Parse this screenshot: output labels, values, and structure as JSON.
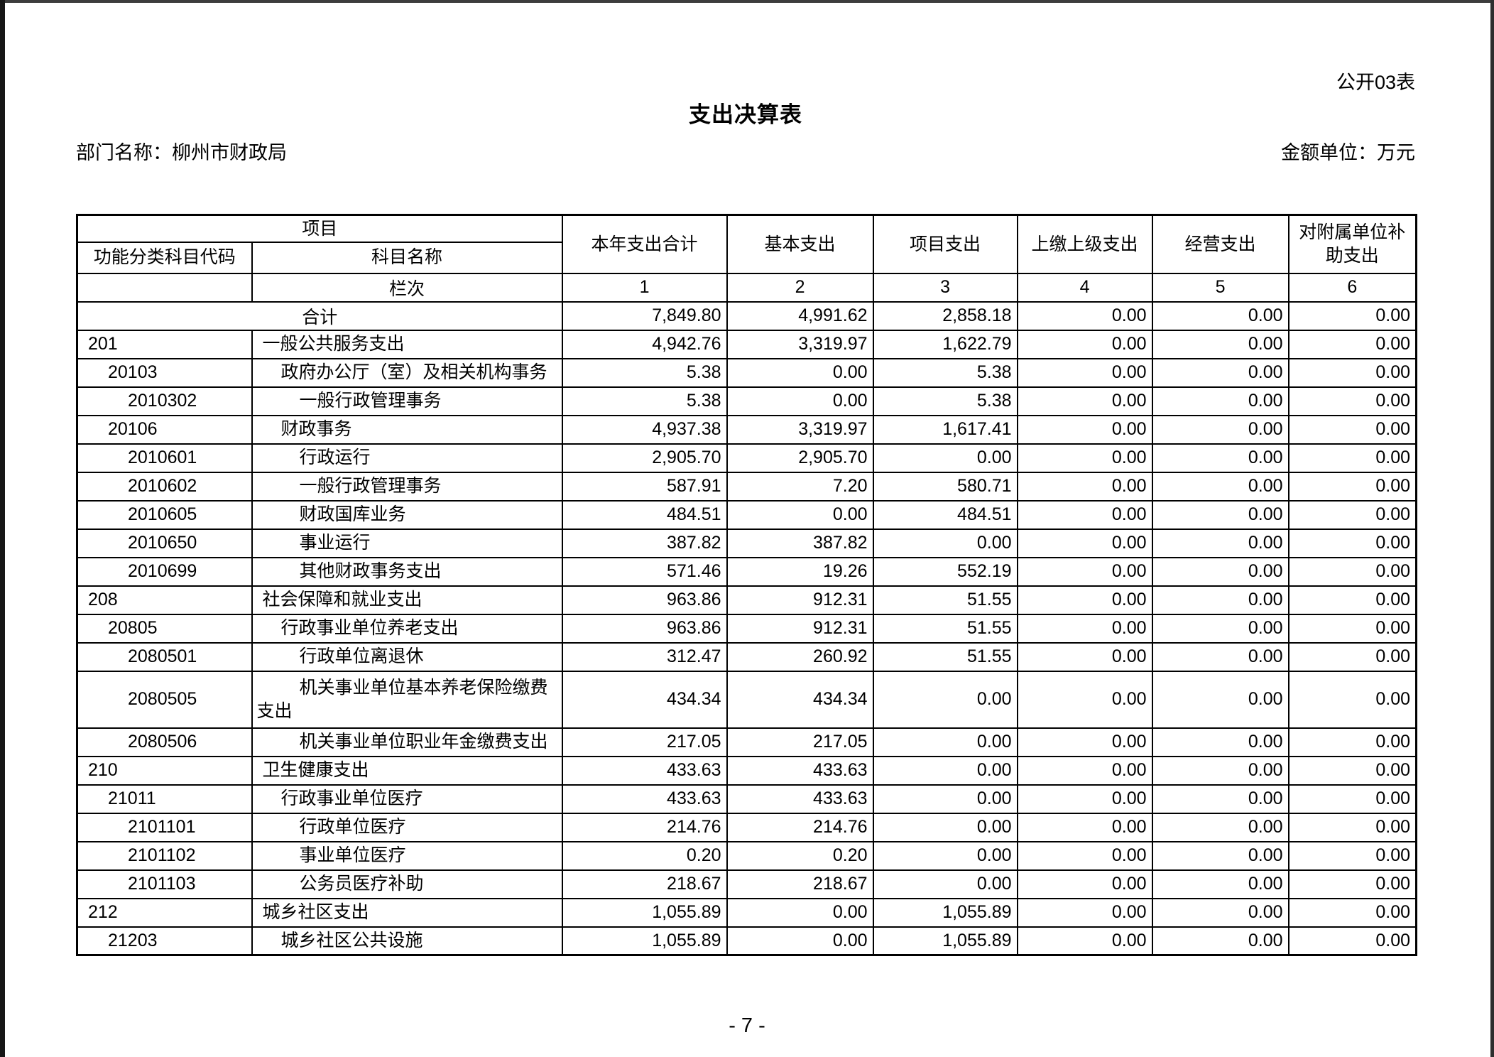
{
  "page": {
    "form_label": "公开03表",
    "title": "支出决算表",
    "department_label": "部门名称：柳州市财政局",
    "unit_label": "金额单位：万元",
    "page_number": "- 7 -"
  },
  "table": {
    "header": {
      "project": "项目",
      "code": "功能分类科目代码",
      "name": "科目名称",
      "lanci": "栏次",
      "cols": [
        "本年支出合计",
        "基本支出",
        "项目支出",
        "上缴上级支出",
        "经营支出",
        "对附属单位补助支出"
      ],
      "col_numbers": [
        "1",
        "2",
        "3",
        "4",
        "5",
        "6"
      ]
    },
    "rows": [
      {
        "merged": true,
        "code": "",
        "name": "合计",
        "level": 0,
        "values": [
          "7,849.80",
          "4,991.62",
          "2,858.18",
          "0.00",
          "0.00",
          "0.00"
        ]
      },
      {
        "code": "201",
        "name": "一般公共服务支出",
        "level": 1,
        "values": [
          "4,942.76",
          "3,319.97",
          "1,622.79",
          "0.00",
          "0.00",
          "0.00"
        ]
      },
      {
        "code": "20103",
        "name": "政府办公厅（室）及相关机构事务",
        "level": 2,
        "values": [
          "5.38",
          "0.00",
          "5.38",
          "0.00",
          "0.00",
          "0.00"
        ]
      },
      {
        "code": "2010302",
        "name": "一般行政管理事务",
        "level": 3,
        "values": [
          "5.38",
          "0.00",
          "5.38",
          "0.00",
          "0.00",
          "0.00"
        ]
      },
      {
        "code": "20106",
        "name": "财政事务",
        "level": 2,
        "values": [
          "4,937.38",
          "3,319.97",
          "1,617.41",
          "0.00",
          "0.00",
          "0.00"
        ]
      },
      {
        "code": "2010601",
        "name": "行政运行",
        "level": 3,
        "values": [
          "2,905.70",
          "2,905.70",
          "0.00",
          "0.00",
          "0.00",
          "0.00"
        ]
      },
      {
        "code": "2010602",
        "name": "一般行政管理事务",
        "level": 3,
        "values": [
          "587.91",
          "7.20",
          "580.71",
          "0.00",
          "0.00",
          "0.00"
        ]
      },
      {
        "code": "2010605",
        "name": "财政国库业务",
        "level": 3,
        "values": [
          "484.51",
          "0.00",
          "484.51",
          "0.00",
          "0.00",
          "0.00"
        ]
      },
      {
        "code": "2010650",
        "name": "事业运行",
        "level": 3,
        "values": [
          "387.82",
          "387.82",
          "0.00",
          "0.00",
          "0.00",
          "0.00"
        ]
      },
      {
        "code": "2010699",
        "name": "其他财政事务支出",
        "level": 3,
        "values": [
          "571.46",
          "19.26",
          "552.19",
          "0.00",
          "0.00",
          "0.00"
        ]
      },
      {
        "code": "208",
        "name": "社会保障和就业支出",
        "level": 1,
        "values": [
          "963.86",
          "912.31",
          "51.55",
          "0.00",
          "0.00",
          "0.00"
        ]
      },
      {
        "code": "20805",
        "name": "行政事业单位养老支出",
        "level": 2,
        "values": [
          "963.86",
          "912.31",
          "51.55",
          "0.00",
          "0.00",
          "0.00"
        ]
      },
      {
        "code": "2080501",
        "name": "行政单位离退休",
        "level": 3,
        "values": [
          "312.47",
          "260.92",
          "51.55",
          "0.00",
          "0.00",
          "0.00"
        ]
      },
      {
        "code": "2080505",
        "name": "机关事业单位基本养老保险缴费支出",
        "level": 3,
        "tall": true,
        "values": [
          "434.34",
          "434.34",
          "0.00",
          "0.00",
          "0.00",
          "0.00"
        ]
      },
      {
        "code": "2080506",
        "name": "机关事业单位职业年金缴费支出",
        "level": 3,
        "values": [
          "217.05",
          "217.05",
          "0.00",
          "0.00",
          "0.00",
          "0.00"
        ]
      },
      {
        "code": "210",
        "name": "卫生健康支出",
        "level": 1,
        "values": [
          "433.63",
          "433.63",
          "0.00",
          "0.00",
          "0.00",
          "0.00"
        ]
      },
      {
        "code": "21011",
        "name": "行政事业单位医疗",
        "level": 2,
        "values": [
          "433.63",
          "433.63",
          "0.00",
          "0.00",
          "0.00",
          "0.00"
        ]
      },
      {
        "code": "2101101",
        "name": "行政单位医疗",
        "level": 3,
        "values": [
          "214.76",
          "214.76",
          "0.00",
          "0.00",
          "0.00",
          "0.00"
        ]
      },
      {
        "code": "2101102",
        "name": "事业单位医疗",
        "level": 3,
        "values": [
          "0.20",
          "0.20",
          "0.00",
          "0.00",
          "0.00",
          "0.00"
        ]
      },
      {
        "code": "2101103",
        "name": "公务员医疗补助",
        "level": 3,
        "values": [
          "218.67",
          "218.67",
          "0.00",
          "0.00",
          "0.00",
          "0.00"
        ]
      },
      {
        "code": "212",
        "name": "城乡社区支出",
        "level": 1,
        "values": [
          "1,055.89",
          "0.00",
          "1,055.89",
          "0.00",
          "0.00",
          "0.00"
        ]
      },
      {
        "code": "21203",
        "name": "城乡社区公共设施",
        "level": 2,
        "values": [
          "1,055.89",
          "0.00",
          "1,055.89",
          "0.00",
          "0.00",
          "0.00"
        ]
      }
    ]
  }
}
